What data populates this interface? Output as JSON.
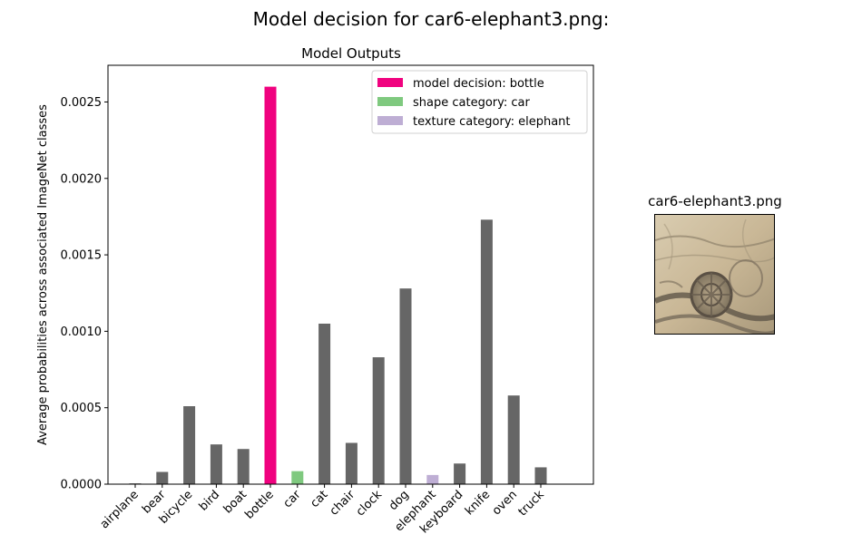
{
  "figure": {
    "title": "Model decision for car6-elephant3.png:"
  },
  "thumbnail": {
    "title": "car6-elephant3.png"
  },
  "chart_data": {
    "type": "bar",
    "title": "Model Outputs",
    "xlabel": "",
    "ylabel": "Average probabilities across associated ImageNet classes",
    "ylim": [
      0,
      0.00274
    ],
    "yticks": [
      "0.0000",
      "0.0005",
      "0.0010",
      "0.0015",
      "0.0020",
      "0.0025"
    ],
    "ytick_values": [
      0,
      0.0005,
      0.001,
      0.0015,
      0.002,
      0.0025
    ],
    "categories": [
      "airplane",
      "bear",
      "bicycle",
      "bird",
      "boat",
      "bottle",
      "car",
      "cat",
      "chair",
      "clock",
      "dog",
      "elephant",
      "keyboard",
      "knife",
      "oven",
      "truck"
    ],
    "values": [
      5e-06,
      8e-05,
      0.00051,
      0.00026,
      0.00023,
      0.0026,
      8.5e-05,
      0.00105,
      0.00027,
      0.00083,
      0.00128,
      6e-05,
      0.000135,
      0.00173,
      0.00058,
      0.00011
    ],
    "bar_colors": [
      "#666666",
      "#666666",
      "#666666",
      "#666666",
      "#666666",
      "#f0027f",
      "#7fc97f",
      "#666666",
      "#666666",
      "#666666",
      "#666666",
      "#beaed4",
      "#666666",
      "#666666",
      "#666666",
      "#666666"
    ],
    "grid": false,
    "legend": {
      "placement": "top-right",
      "entries": [
        {
          "label": "model decision: bottle",
          "color": "#f0027f"
        },
        {
          "label": "shape category: car",
          "color": "#7fc97f"
        },
        {
          "label": "texture category: elephant",
          "color": "#beaed4"
        }
      ]
    }
  }
}
